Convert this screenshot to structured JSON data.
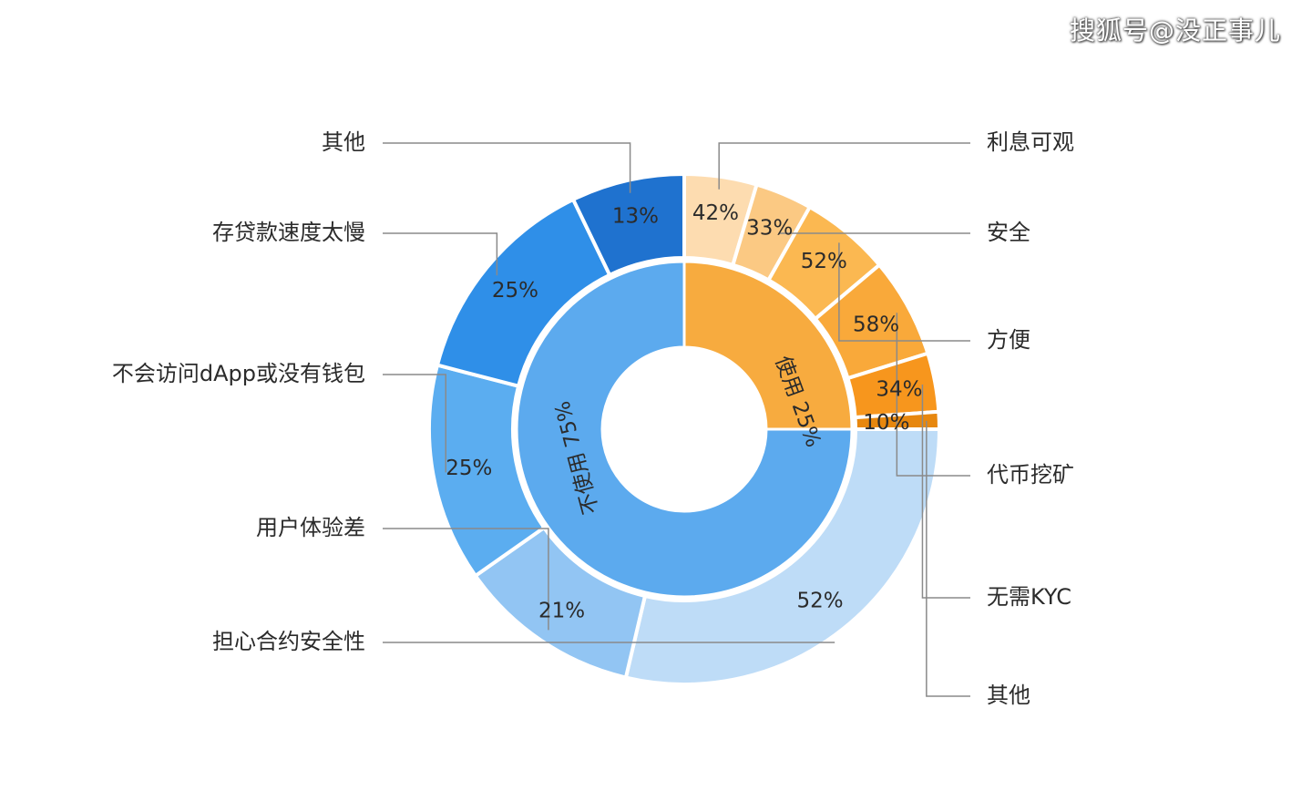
{
  "watermark": "搜狐号@没正事儿",
  "chart_data": {
    "type": "donut",
    "inner_ring": [
      {
        "label": "使用 25%",
        "value": 25,
        "color": "#f7ab3f"
      },
      {
        "label": "不使用 75%",
        "value": 75,
        "color": "#5caaee"
      }
    ],
    "outer_ring": [
      {
        "name": "利息可观",
        "label": "42%",
        "value": 42,
        "color": "#fddcb0",
        "group": "使用"
      },
      {
        "name": "安全",
        "label": "33%",
        "value": 33,
        "color": "#fbc983",
        "group": "使用"
      },
      {
        "name": "方便",
        "label": "52%",
        "value": 52,
        "color": "#fbb851",
        "group": "使用"
      },
      {
        "name": "代币挖矿",
        "label": "58%",
        "value": 58,
        "color": "#f9a93a",
        "group": "使用"
      },
      {
        "name": "无需KYC",
        "label": "34%",
        "value": 34,
        "color": "#f7961d",
        "group": "使用"
      },
      {
        "name": "其他",
        "label": "10%",
        "value": 10,
        "color": "#e7870e",
        "group": "使用"
      },
      {
        "name": "担心合约安全性",
        "label": "52%",
        "value": 52,
        "color": "#bedcf7",
        "group": "不使用"
      },
      {
        "name": "用户体验差",
        "label": "21%",
        "value": 21,
        "color": "#92c5f3",
        "group": "不使用"
      },
      {
        "name": "不会访问dApp或没有钱包",
        "label": "25%",
        "value": 25,
        "color": "#5badf0",
        "group": "不使用"
      },
      {
        "name": "存贷款速度太慢",
        "label": "25%",
        "value": 25,
        "color": "#2f8fe8",
        "group": "不使用"
      },
      {
        "name": "其他",
        "label": "13%",
        "value": 13,
        "color": "#1f72cf",
        "group": "不使用"
      }
    ]
  }
}
